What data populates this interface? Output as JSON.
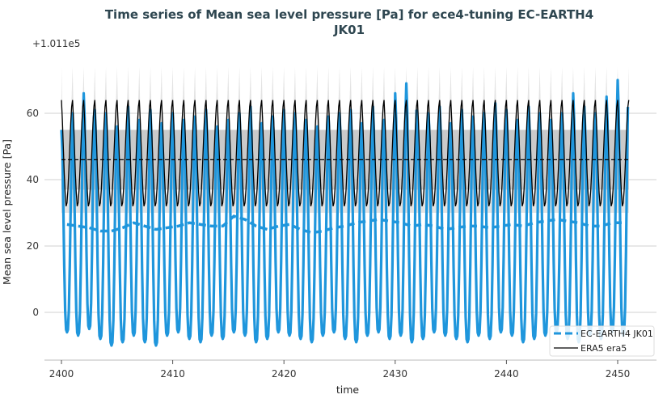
{
  "chart_data": {
    "type": "line",
    "title": "Time series of Mean sea level pressure [Pa] for ece4-tuning EC-EARTH4",
    "title_line2": "JK01",
    "offset_label": "+1.011e5",
    "xlabel": "time",
    "ylabel": "Mean sea level pressure [Pa]",
    "xlim": [
      2400,
      2451
    ],
    "ylim": [
      -14,
      90
    ],
    "xticks": [
      2400,
      2410,
      2420,
      2430,
      2440,
      2450
    ],
    "yticks": [
      0,
      20,
      40,
      60
    ],
    "grid": "horizontal",
    "legend_placement": "bottom-right",
    "colors": {
      "model": "#1f96dc",
      "era5": "#000000",
      "band": "#bdbdbd",
      "envelope": "#e3e3e3"
    },
    "series": [
      {
        "name": "EC-EARTH4 JK01",
        "style": "dashed rolling mean over monthly values",
        "years": [
          2400,
          2401,
          2402,
          2403,
          2404,
          2405,
          2406,
          2407,
          2408,
          2409,
          2410,
          2411,
          2412,
          2413,
          2414,
          2415,
          2416,
          2417,
          2418,
          2419,
          2420,
          2421,
          2422,
          2423,
          2424,
          2425,
          2426,
          2427,
          2428,
          2429,
          2430,
          2431,
          2432,
          2433,
          2434,
          2435,
          2436,
          2437,
          2438,
          2439,
          2440,
          2441,
          2442,
          2443,
          2444,
          2445,
          2446,
          2447,
          2448,
          2449,
          2450
        ],
        "annual_max": [
          55,
          60,
          66,
          61,
          60,
          56,
          62,
          58,
          61,
          57,
          60,
          58,
          59,
          61,
          56,
          58,
          60,
          62,
          57,
          59,
          61,
          60,
          58,
          56,
          59,
          60,
          61,
          57,
          62,
          58,
          66,
          69,
          58,
          60,
          62,
          57,
          61,
          59,
          60,
          63,
          61,
          58,
          62,
          60,
          58,
          60,
          66,
          62,
          60,
          65,
          70
        ],
        "annual_min": [
          -6,
          -7,
          -5,
          -8,
          -10,
          -9,
          -7,
          -9,
          -10,
          -7,
          -6,
          -8,
          -9,
          -7,
          -8,
          -6,
          -7,
          -9,
          -8,
          -6,
          -7,
          -8,
          -9,
          -7,
          -6,
          -8,
          -9,
          -7,
          -6,
          -8,
          -7,
          -9,
          -8,
          -6,
          -7,
          -8,
          -9,
          -7,
          -8,
          -6,
          -7,
          -9,
          -8,
          -7,
          -6,
          -8,
          -9,
          -7,
          -8,
          -6,
          -7
        ],
        "rolling_mean": [
          26.5,
          26,
          25.5,
          24.5,
          24.5,
          25.5,
          27,
          26,
          25,
          25.5,
          26,
          27,
          26.5,
          26,
          26,
          29,
          28,
          26,
          25,
          26,
          26.5,
          25,
          24,
          24.5,
          25.5,
          26,
          27,
          27.5,
          28,
          27.5,
          27,
          26,
          26.5,
          26,
          25,
          25.5,
          26,
          26,
          25.5,
          26,
          26.5,
          26,
          27,
          27.5,
          28,
          27.5,
          27,
          26,
          26,
          27,
          27
        ]
      },
      {
        "name": "ERA5 era5",
        "style": "solid monthly climatology repeated",
        "monthly_climatology": [
          64,
          58,
          50,
          42,
          36,
          32,
          33,
          37,
          43,
          50,
          57,
          62
        ],
        "mean": 46,
        "std_band": [
          37,
          55
        ],
        "envelope_max": 74,
        "envelope_min": 30
      }
    ]
  }
}
